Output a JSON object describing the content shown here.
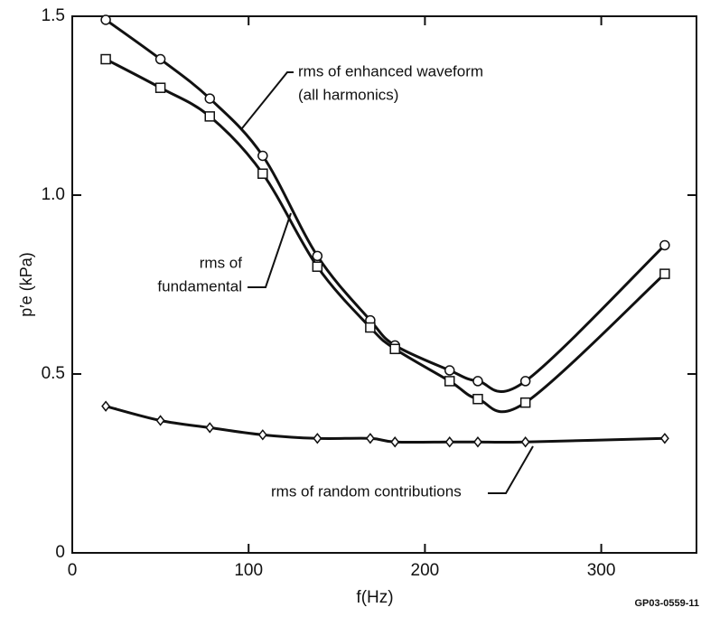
{
  "chart_data": {
    "type": "line",
    "x_label": "f(Hz)",
    "y_label": "p′e (kPa)",
    "x": [
      19,
      50,
      78,
      108,
      139,
      169,
      183,
      214,
      230,
      257,
      336
    ],
    "series": [
      {
        "name": "rms of enhanced waveform (all harmonics)",
        "color": "#111111",
        "marker": "circle",
        "values": [
          1.49,
          1.38,
          1.27,
          1.11,
          0.83,
          0.65,
          0.58,
          0.51,
          0.48,
          0.48,
          0.86
        ]
      },
      {
        "name": "rms of fundamental",
        "color": "#111111",
        "marker": "square",
        "values": [
          1.38,
          1.3,
          1.22,
          1.06,
          0.8,
          0.63,
          0.57,
          0.48,
          0.43,
          0.42,
          0.78
        ]
      },
      {
        "name": "rms of random contributions",
        "color": "#111111",
        "marker": "diamond",
        "values": [
          0.41,
          0.37,
          0.35,
          0.33,
          0.32,
          0.32,
          0.31,
          0.31,
          0.31,
          0.31,
          0.32
        ]
      }
    ],
    "annotations": [
      "rms of enhanced waveform",
      "(all harmonics)",
      "rms of",
      "fundamental",
      "rms of random contributions"
    ],
    "figure_id": "GP03-0559-11",
    "xlim": [
      0,
      354
    ],
    "ylim": [
      0,
      1.5
    ],
    "xticks": [
      0,
      100,
      200,
      300
    ],
    "yticks": [
      0,
      {
        "value": 0.5,
        "label": "0.5"
      },
      {
        "value": 1.0,
        "label": "1.0"
      },
      1.5
    ],
    "grid": false
  }
}
